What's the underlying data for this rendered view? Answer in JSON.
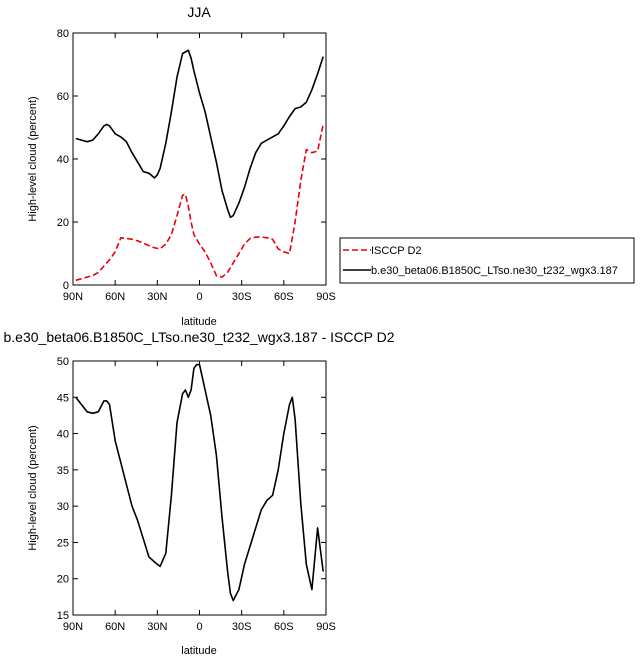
{
  "chart_data": [
    {
      "type": "line",
      "title": "JJA",
      "xlabel": "latitude",
      "ylabel": "High-level cloud (percent)",
      "xlim": [
        90,
        -90
      ],
      "ylim": [
        0,
        80
      ],
      "xticks": [
        90,
        60,
        30,
        0,
        -30,
        -60,
        -90
      ],
      "xtick_labels": [
        "90N",
        "60N",
        "30N",
        "0",
        "30S",
        "60S",
        "90S"
      ],
      "yticks": [
        0,
        20,
        40,
        60,
        80
      ],
      "ytick_labels": [
        "0",
        "20",
        "40",
        "60",
        "80"
      ],
      "legend": "right",
      "series": [
        {
          "name": "ISCCP D2",
          "color": "#e8000b",
          "dash": "dashed",
          "x": [
            88,
            84,
            80,
            76,
            72,
            68,
            64,
            60,
            56,
            52,
            48,
            44,
            40,
            36,
            32,
            28,
            24,
            20,
            16,
            12,
            10,
            8,
            6,
            4,
            2,
            0,
            -4,
            -8,
            -12,
            -16,
            -20,
            -24,
            -28,
            -32,
            -36,
            -40,
            -44,
            -48,
            -52,
            -56,
            -60,
            -64,
            -68,
            -72,
            -76,
            -80,
            -84,
            -88
          ],
          "values": [
            1.5,
            2,
            2.5,
            3,
            4,
            6,
            8,
            10.5,
            15,
            14.8,
            14.5,
            14,
            13.3,
            12.5,
            11.8,
            11.5,
            13,
            16,
            22,
            28.5,
            28.8,
            25,
            20,
            16,
            14.5,
            13,
            10.5,
            7,
            3,
            2.5,
            4,
            7,
            10,
            13,
            14.8,
            15.2,
            15.2,
            15,
            14.5,
            11.5,
            10.5,
            10,
            20,
            33,
            43,
            42,
            42.5,
            51
          ]
        },
        {
          "name": "b.e30_beta06.B1850C_LTso.ne30_t232_wgx3.187",
          "color": "#000000",
          "dash": "solid",
          "x": [
            88,
            84,
            80,
            76,
            72,
            68,
            66,
            64,
            60,
            56,
            52,
            48,
            44,
            40,
            36,
            32,
            30,
            28,
            24,
            20,
            16,
            12,
            8,
            6,
            4,
            0,
            -4,
            -8,
            -12,
            -16,
            -20,
            -22,
            -24,
            -28,
            -32,
            -36,
            -40,
            -44,
            -48,
            -52,
            -56,
            -60,
            -64,
            -68,
            -72,
            -76,
            -80,
            -84,
            -88
          ],
          "values": [
            46.5,
            46,
            45.5,
            46,
            48,
            50.5,
            51,
            50.5,
            48,
            47,
            45.5,
            42,
            39,
            36,
            35.5,
            34,
            35,
            37,
            45,
            55,
            66,
            73.5,
            74.5,
            72,
            68,
            61,
            55,
            47,
            39,
            30,
            24,
            21.5,
            22,
            26,
            31,
            37,
            42,
            45,
            46,
            47,
            48,
            50.5,
            53.5,
            56,
            56.5,
            58,
            62,
            67,
            72.5
          ]
        }
      ]
    },
    {
      "type": "line",
      "title": "b.e30_beta06.B1850C_LTso.ne30_t232_wgx3.187 - ISCCP D2",
      "xlabel": "latitude",
      "ylabel": "High-level cloud (percent)",
      "xlim": [
        90,
        -90
      ],
      "ylim": [
        15,
        50
      ],
      "xticks": [
        90,
        60,
        30,
        0,
        -30,
        -60,
        -90
      ],
      "xtick_labels": [
        "90N",
        "60N",
        "30N",
        "0",
        "30S",
        "60S",
        "90S"
      ],
      "yticks": [
        15,
        20,
        25,
        30,
        35,
        40,
        45,
        50
      ],
      "ytick_labels": [
        "15",
        "20",
        "25",
        "30",
        "35",
        "40",
        "45",
        "50"
      ],
      "series": [
        {
          "color": "#000000",
          "dash": "solid",
          "x": [
            88,
            84,
            80,
            76,
            72,
            68,
            66,
            64,
            60,
            56,
            52,
            48,
            44,
            40,
            36,
            32,
            30,
            28,
            24,
            20,
            16,
            12,
            10,
            8,
            6,
            4,
            2,
            0,
            -4,
            -8,
            -12,
            -16,
            -20,
            -22,
            -24,
            -28,
            -32,
            -36,
            -40,
            -44,
            -48,
            -52,
            -56,
            -60,
            -64,
            -66,
            -68,
            -72,
            -76,
            -80,
            -84,
            -88
          ],
          "values": [
            45,
            44,
            43,
            42.8,
            43,
            44.5,
            44.5,
            44,
            39,
            36,
            33,
            30,
            28,
            25.5,
            23,
            22.3,
            22,
            21.7,
            23.5,
            31.5,
            41.5,
            45.5,
            46,
            45,
            46,
            49,
            49.5,
            49.5,
            46,
            42.5,
            37,
            28.5,
            21,
            18,
            17,
            18.5,
            22,
            24.5,
            27,
            29.5,
            30.8,
            31.5,
            35,
            40,
            44,
            45,
            42,
            30.5,
            22,
            18.5,
            27,
            21
          ]
        }
      ]
    }
  ]
}
